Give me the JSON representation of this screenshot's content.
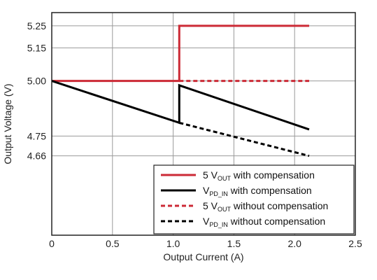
{
  "chart_data": {
    "type": "line",
    "xlabel": "Output Current (A)",
    "ylabel": "Output Voltage (V)",
    "xlim": [
      0,
      2.5
    ],
    "ylim": [
      4.3,
      5.31
    ],
    "grid": true,
    "legend_position": "bottom-right",
    "x_ticks": [
      "0",
      "0.5",
      "1.0",
      "1.5",
      "2.0",
      "2.5"
    ],
    "x_tick_values": [
      0,
      0.5,
      1.0,
      1.5,
      2.0,
      2.5
    ],
    "y_ticks": [
      "5.25",
      "5.15",
      "5.00",
      "4.75",
      "4.66"
    ],
    "y_tick_values": [
      5.25,
      5.15,
      5.0,
      4.75,
      4.66
    ],
    "series": [
      {
        "name_main": "5 V",
        "name_sub": "OUT",
        "name_rest": " with compensation",
        "color": "#cc2a36",
        "style": "solid",
        "points": [
          [
            0,
            5.0
          ],
          [
            1.05,
            5.0
          ],
          [
            1.05,
            5.25
          ],
          [
            2.12,
            5.25
          ]
        ]
      },
      {
        "name_main": "V",
        "name_sub": "PD_IN",
        "name_rest": " with compensation",
        "color": "#000000",
        "style": "solid",
        "points": [
          [
            0,
            5.0
          ],
          [
            1.05,
            4.81
          ],
          [
            1.05,
            4.98
          ],
          [
            2.12,
            4.78
          ]
        ]
      },
      {
        "name_main": "5 V",
        "name_sub": "OUT",
        "name_rest": " without compensation",
        "color": "#cc2a36",
        "style": "dashed",
        "points": [
          [
            1.05,
            5.0
          ],
          [
            2.12,
            5.0
          ]
        ]
      },
      {
        "name_main": "V",
        "name_sub": "PD_IN",
        "name_rest": " without compensation",
        "color": "#000000",
        "style": "dashed",
        "points": [
          [
            1.05,
            4.81
          ],
          [
            2.12,
            4.66
          ]
        ]
      }
    ]
  }
}
